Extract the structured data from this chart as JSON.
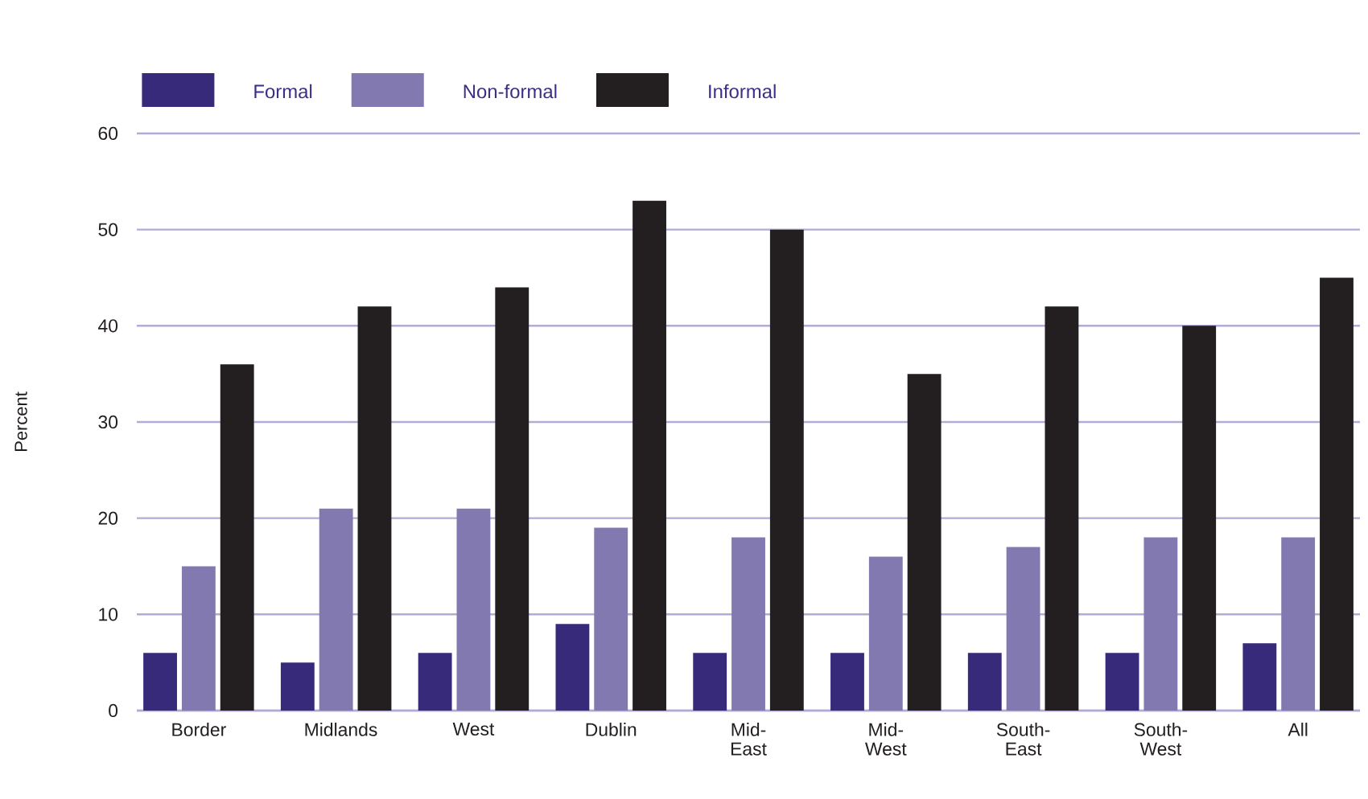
{
  "chart_data": {
    "type": "bar",
    "ylabel": "Percent",
    "categories": [
      "Border",
      "Midlands",
      "West",
      "Dublin",
      "Mid-East",
      "Mid-West",
      "South-East",
      "South-West",
      "All"
    ],
    "series": [
      {
        "name": "Formal",
        "color": "#372a7a",
        "values": [
          6,
          5,
          6,
          9,
          6,
          6,
          6,
          6,
          7
        ]
      },
      {
        "name": "Non-formal",
        "color": "#8279b0",
        "values": [
          15,
          21,
          21,
          19,
          18,
          16,
          17,
          18,
          18
        ]
      },
      {
        "name": "Informal",
        "color": "#231f20",
        "values": [
          36,
          42,
          44,
          53,
          50,
          35,
          42,
          40,
          45
        ]
      }
    ],
    "ylim": [
      0,
      60
    ],
    "yticks": [
      0,
      10,
      20,
      30,
      40,
      50,
      60
    ],
    "grid": "y",
    "legend": "top left"
  }
}
